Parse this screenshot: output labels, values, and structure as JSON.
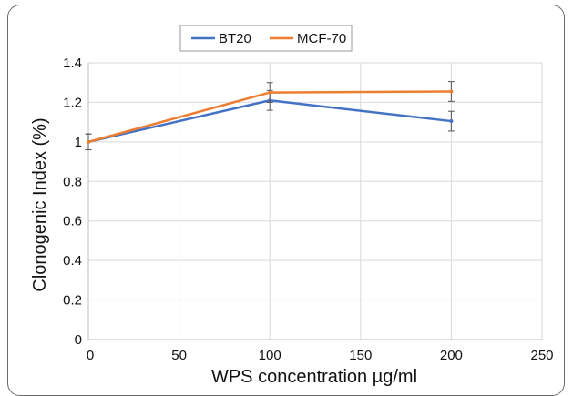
{
  "chart_data": {
    "type": "line",
    "xlabel": "WPS concentration µg/ml",
    "ylabel": "Clonogenic Index (%)",
    "xlim": [
      0,
      250
    ],
    "ylim": [
      0,
      1.4
    ],
    "x_ticks": [
      "0",
      "50",
      "100",
      "150",
      "200",
      "250"
    ],
    "y_ticks": [
      "0",
      "0.2",
      "0.4",
      "0.6",
      "0.8",
      "1",
      "1.2",
      "1.4"
    ],
    "grid": "both",
    "legend_position": "top",
    "series": [
      {
        "name": "BT20",
        "color": "#4472c4",
        "x": [
          0,
          100,
          200
        ],
        "y": [
          1.0,
          1.21,
          1.105
        ],
        "error": [
          0.04,
          0.05,
          0.05
        ]
      },
      {
        "name": "MCF-70",
        "color": "#ed7d31",
        "x": [
          0,
          100,
          200
        ],
        "y": [
          1.0,
          1.25,
          1.255
        ],
        "error": [
          0.04,
          0.05,
          0.05
        ]
      }
    ]
  }
}
